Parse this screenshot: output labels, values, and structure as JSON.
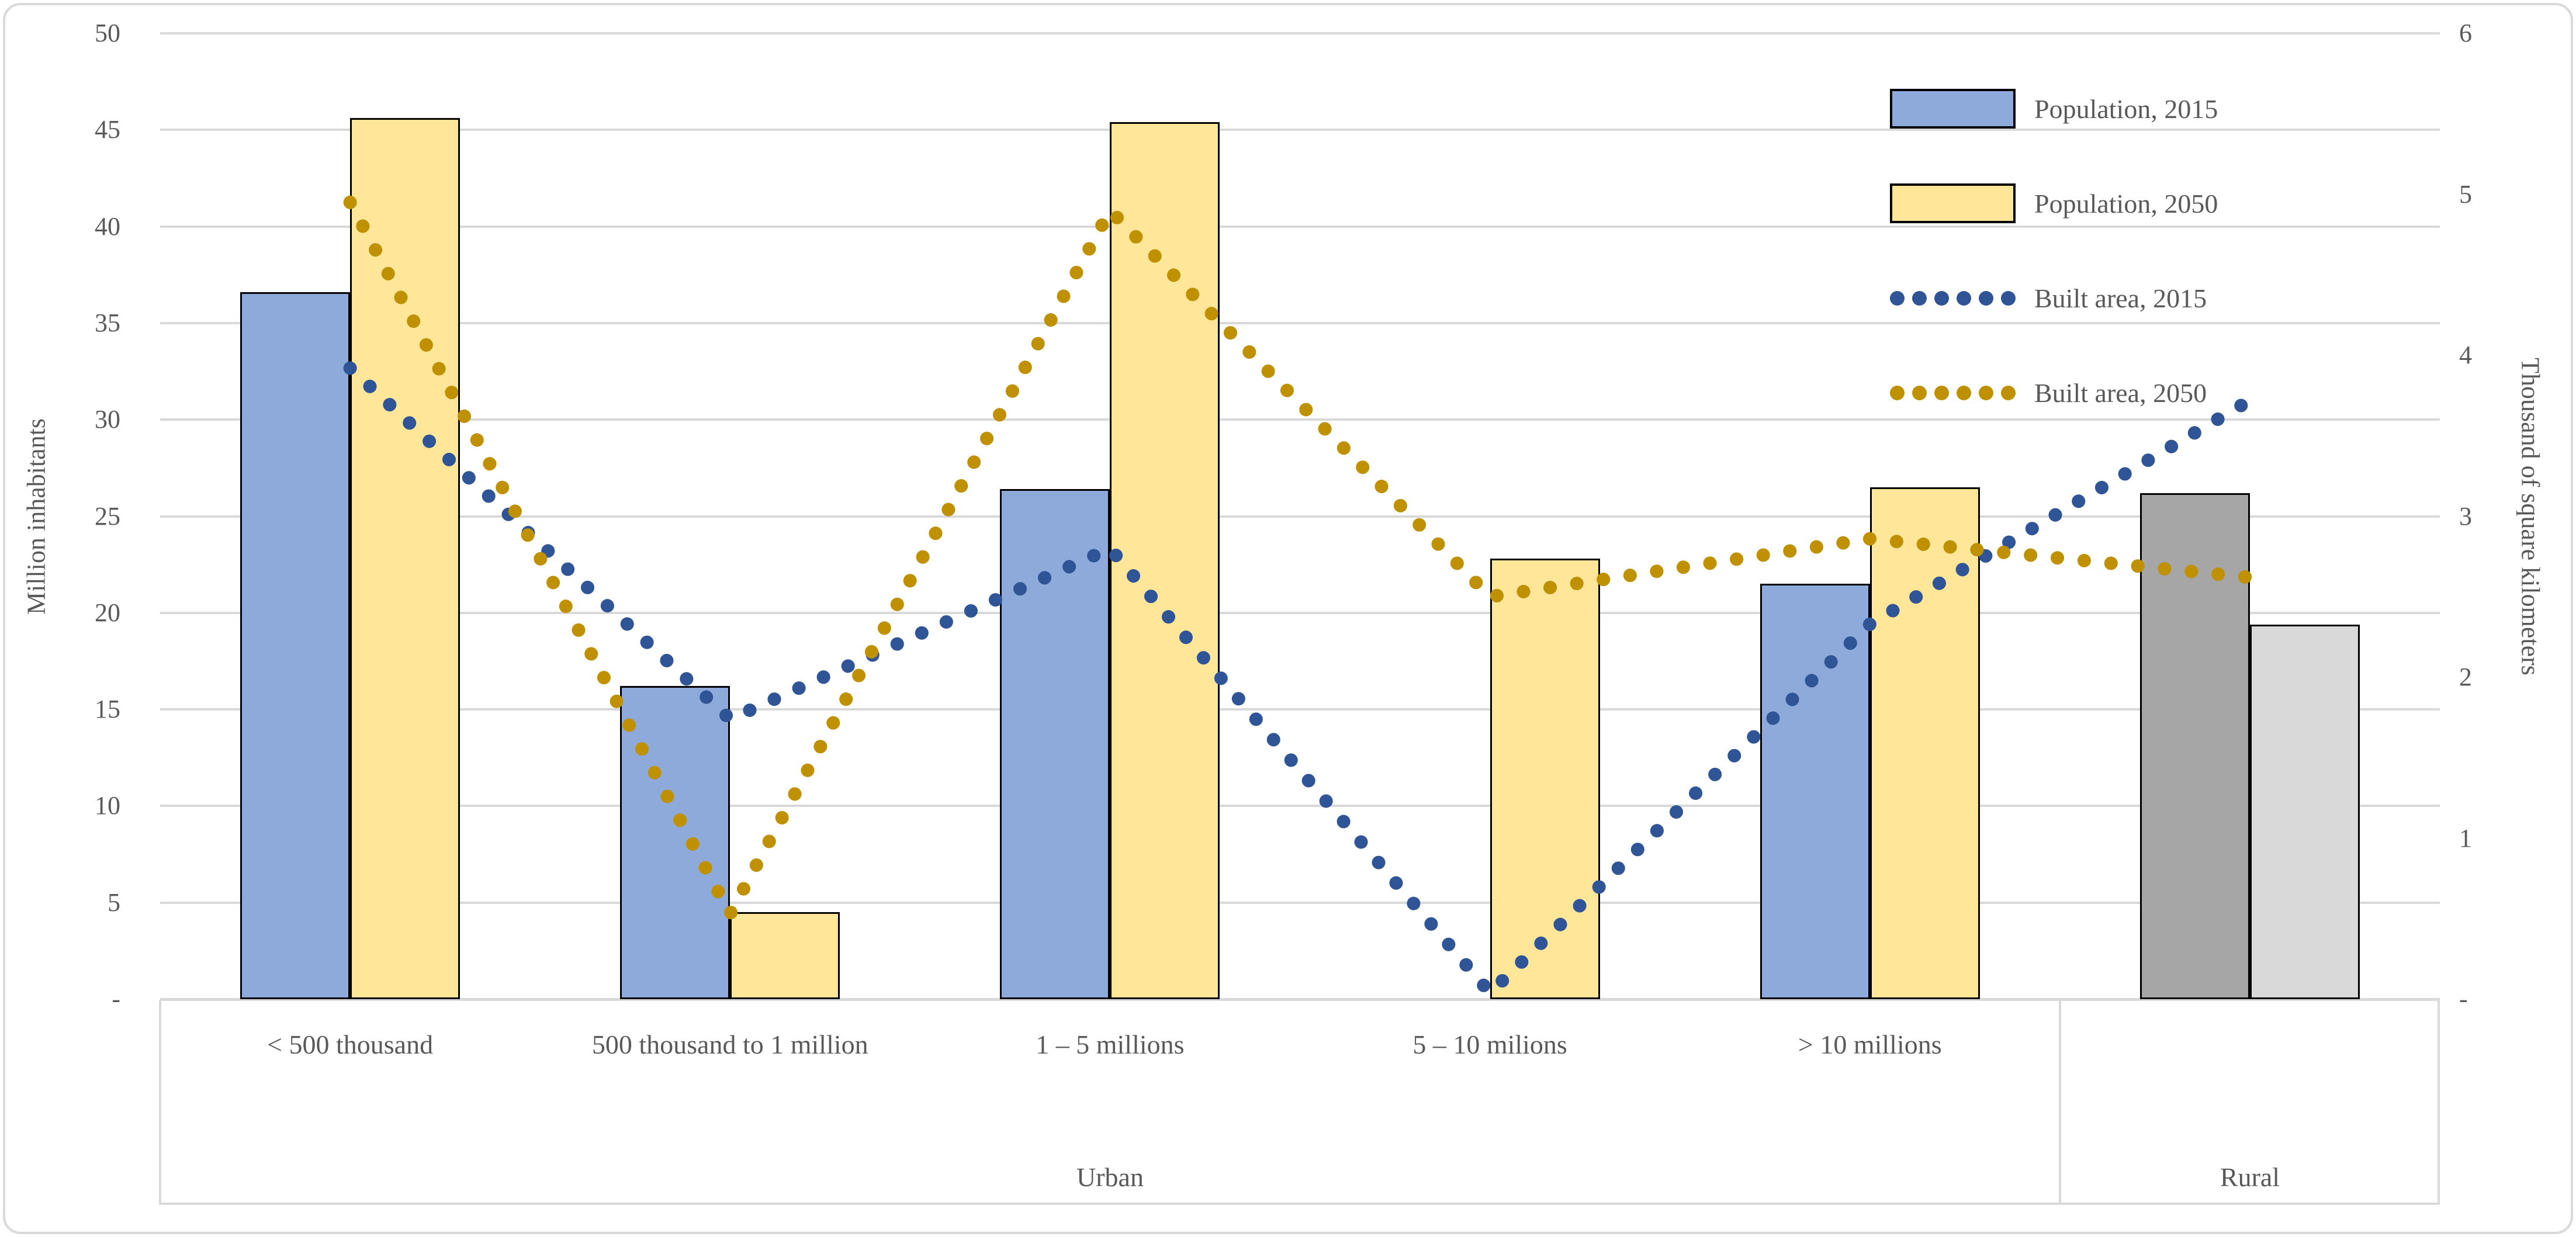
{
  "chart_data": {
    "type": "combo-bar-line",
    "categories": [
      "< 500 thousand",
      "500 thousand to 1 million",
      "1 – 5 millions",
      "5 – 10 milions",
      "> 10 millions",
      "Rural"
    ],
    "category_axis_row1": [
      "< 500 thousand",
      "500 thousand to 1 million",
      "1 – 5 millions",
      "5 – 10 milions",
      "> 10 millions",
      ""
    ],
    "category_groups": [
      {
        "label": "Urban",
        "start": 0,
        "end": 4
      },
      {
        "label": "Rural",
        "start": 5,
        "end": 5
      }
    ],
    "left_axis": {
      "title": "Million inhabitants",
      "min": 0,
      "max": 50,
      "step": 5,
      "tick_labels": [
        "-",
        "5",
        "10",
        "15",
        "20",
        "25",
        "30",
        "35",
        "40",
        "45",
        "50"
      ]
    },
    "right_axis": {
      "title": "Thousand of square kilometers",
      "min": 0,
      "max": 6,
      "step": 1,
      "tick_labels": [
        "-",
        "1",
        "2",
        "3",
        "4",
        "5",
        "6"
      ]
    },
    "grid": true,
    "legend_position": "top-right",
    "series": [
      {
        "name": "Population, 2015",
        "type": "bar",
        "axis": "left",
        "color_urban": "#8EAADB",
        "color_rural": "#A6A6A6",
        "border_color": "#000000",
        "values": [
          36.6,
          16.2,
          26.4,
          null,
          21.5,
          26.2
        ]
      },
      {
        "name": "Population, 2050",
        "type": "bar",
        "axis": "left",
        "color_urban": "#FFE699",
        "color_rural": "#D9D9D9",
        "border_color": "#000000",
        "values": [
          45.6,
          4.5,
          45.4,
          22.8,
          26.5,
          19.4
        ]
      },
      {
        "name": "Built area, 2015",
        "type": "dotted-line",
        "axis": "right",
        "color": "#2F5597",
        "values": [
          3.92,
          1.74,
          2.8,
          0.04,
          2.33,
          3.72
        ]
      },
      {
        "name": "Built area, 2050",
        "type": "dotted-line",
        "axis": "right",
        "color": "#BF9000",
        "values": [
          4.95,
          0.53,
          4.9,
          2.5,
          2.86,
          2.62
        ]
      }
    ]
  },
  "colors": {
    "gridline": "#D9D9D9",
    "axis_text": "#595959",
    "frame_border": "#D9D9D9",
    "background": "#FFFFFF"
  }
}
